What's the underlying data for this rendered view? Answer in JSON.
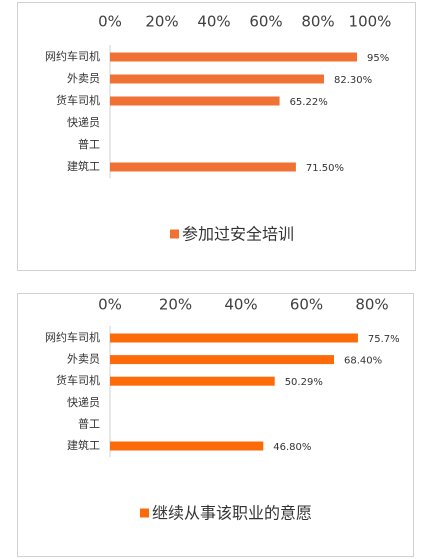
{
  "chart_data": [
    {
      "type": "bar",
      "orientation": "horizontal",
      "categories": [
        "网约车司机",
        "外卖员",
        "货车司机",
        "快递员",
        "普工",
        "建筑工"
      ],
      "series": [
        {
          "name": "参加过安全培训",
          "color": "#f07134",
          "values": [
            95,
            82.3,
            65.22,
            null,
            null,
            71.5
          ],
          "value_labels": [
            "95%",
            "82.30%",
            "65.22%",
            null,
            null,
            "71.50%"
          ]
        }
      ],
      "xlim": [
        0,
        100
      ],
      "xticks": [
        {
          "value": 0,
          "label": "0%"
        },
        {
          "value": 20,
          "label": "20%"
        },
        {
          "value": 40,
          "label": "40%"
        },
        {
          "value": 60,
          "label": "60%"
        },
        {
          "value": 80,
          "label": "80%"
        },
        {
          "value": 100,
          "label": "100%"
        }
      ],
      "legend": "bottom"
    },
    {
      "type": "bar",
      "orientation": "horizontal",
      "categories": [
        "网约车司机",
        "外卖员",
        "货车司机",
        "快递员",
        "普工",
        "建筑工"
      ],
      "series": [
        {
          "name": "继续从事该职业的意愿",
          "color": "#fc6a0a",
          "values": [
            75.7,
            68.4,
            50.29,
            null,
            null,
            46.8
          ],
          "value_labels": [
            "75.7%",
            "68.40%",
            "50.29%",
            null,
            null,
            "46.80%"
          ]
        }
      ],
      "xlim": [
        0,
        80
      ],
      "xticks": [
        {
          "value": 0,
          "label": "0%"
        },
        {
          "value": 20,
          "label": "20%"
        },
        {
          "value": 40,
          "label": "40%"
        },
        {
          "value": 60,
          "label": "60%"
        },
        {
          "value": 80,
          "label": "80%"
        }
      ],
      "legend": "bottom"
    }
  ]
}
